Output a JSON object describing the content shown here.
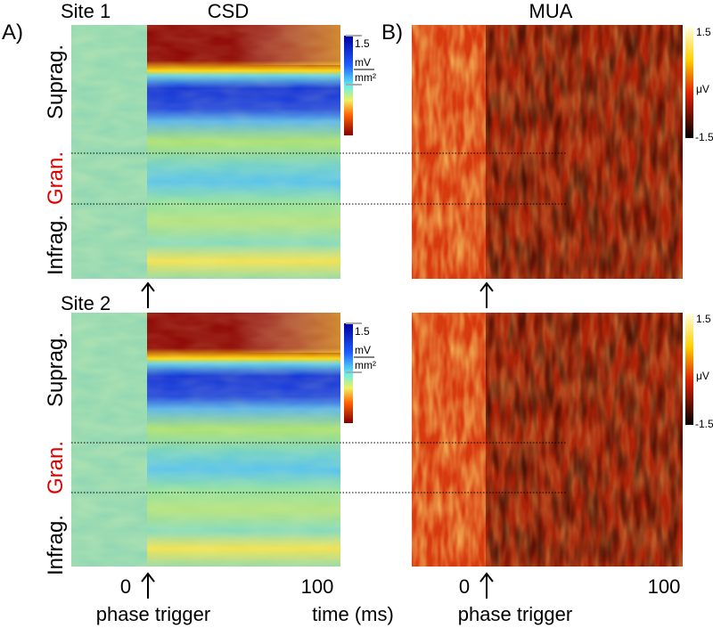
{
  "panel_a": {
    "label": "A)",
    "title": "CSD",
    "sites": [
      "Site 1",
      "Site 2"
    ],
    "layers": [
      "Suprag.",
      "Gran.",
      "Infrag."
    ],
    "colorbar": {
      "max": "1.5",
      "unit_top": "mV",
      "unit_bottom": "mm²"
    }
  },
  "panel_b": {
    "label": "B)",
    "title": "MUA",
    "colorbar": {
      "max": "1.5",
      "unit": "μV",
      "min": "-1.5"
    }
  },
  "x_axis": {
    "ticks": [
      "0",
      "100"
    ],
    "trigger_label": "phase trigger",
    "label": "time (ms)"
  }
}
